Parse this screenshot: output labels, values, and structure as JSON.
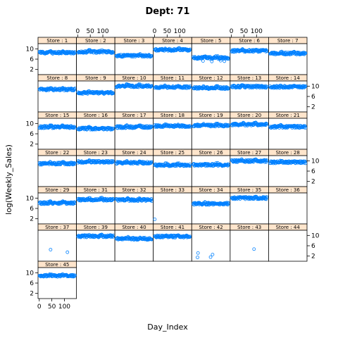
{
  "chart_data": {
    "type": "scatter",
    "title": "Dept: 71",
    "xlabel": "Day_Index",
    "ylabel": "log(Weekly_Sales)",
    "xlim": [
      -5,
      148
    ],
    "ylim": [
      0,
      12
    ],
    "xticks": [
      0,
      50,
      100
    ],
    "yticks": [
      2,
      6,
      10
    ],
    "layout": {
      "columns": 7
    },
    "colors": {
      "point": "#0080ff",
      "strip": "#ffe5cc",
      "border": "#000000"
    },
    "panels": [
      {
        "label": "Store : 1",
        "level": 8.5
      },
      {
        "label": "Store : 2",
        "level": 8.8
      },
      {
        "label": "Store : 3",
        "level": 7.3
      },
      {
        "label": "Store : 4",
        "level": 9.6
      },
      {
        "label": "Store : 5",
        "level": 6.5
      },
      {
        "label": "Store : 6",
        "level": 9.2
      },
      {
        "label": "Store : 7",
        "level": 8.2
      },
      {
        "label": "Store : 8",
        "level": 8.7
      },
      {
        "label": "Store : 9",
        "level": 7.4
      },
      {
        "label": "Store : 10",
        "level": 10.0
      },
      {
        "label": "Store : 11",
        "level": 9.6
      },
      {
        "label": "Store : 12",
        "level": 9.3
      },
      {
        "label": "Store : 13",
        "level": 9.8
      },
      {
        "label": "Store : 14",
        "level": 9.7
      },
      {
        "label": "Store : 15",
        "level": 8.6
      },
      {
        "label": "Store : 16",
        "level": 8.0
      },
      {
        "label": "Store : 17",
        "level": 8.6
      },
      {
        "label": "Store : 18",
        "level": 9.0
      },
      {
        "label": "Store : 19",
        "level": 9.2
      },
      {
        "label": "Store : 20",
        "level": 9.6
      },
      {
        "label": "Store : 21",
        "level": 8.7
      },
      {
        "label": "Store : 22",
        "level": 8.9
      },
      {
        "label": "Store : 23",
        "level": 9.6
      },
      {
        "label": "Store : 24",
        "level": 9.2
      },
      {
        "label": "Store : 25",
        "level": 8.3
      },
      {
        "label": "Store : 26",
        "level": 8.4
      },
      {
        "label": "Store : 27",
        "level": 9.9
      },
      {
        "label": "Store : 28",
        "level": 9.4
      },
      {
        "label": "Store : 29",
        "level": 8.1
      },
      {
        "label": "Store : 31",
        "level": 9.4
      },
      {
        "label": "Store : 32",
        "level": 9.3
      },
      {
        "label": "Store : 33",
        "level": null,
        "points": [
          [
            1,
            1.8
          ]
        ]
      },
      {
        "label": "Store : 34",
        "level": 7.8
      },
      {
        "label": "Store : 35",
        "level": 10.0
      },
      {
        "label": "Store : 36",
        "level": null,
        "points": []
      },
      {
        "label": "Store : 37",
        "level": null,
        "points": [
          [
            45,
            4.5
          ],
          [
            112,
            3.5
          ]
        ]
      },
      {
        "label": "Store : 39",
        "level": 9.7
      },
      {
        "label": "Store : 40",
        "level": 8.7
      },
      {
        "label": "Store : 41",
        "level": 9.6
      },
      {
        "label": "Store : 42",
        "level": null,
        "points": [
          [
            18,
            1.5
          ],
          [
            20,
            3.2
          ],
          [
            70,
            1.6
          ],
          [
            78,
            2.6
          ]
        ]
      },
      {
        "label": "Store : 43",
        "level": null,
        "points": [
          [
            90,
            4.7
          ]
        ]
      },
      {
        "label": "Store : 44",
        "level": null,
        "points": []
      },
      {
        "label": "Store : 45",
        "level": 8.8
      }
    ]
  }
}
